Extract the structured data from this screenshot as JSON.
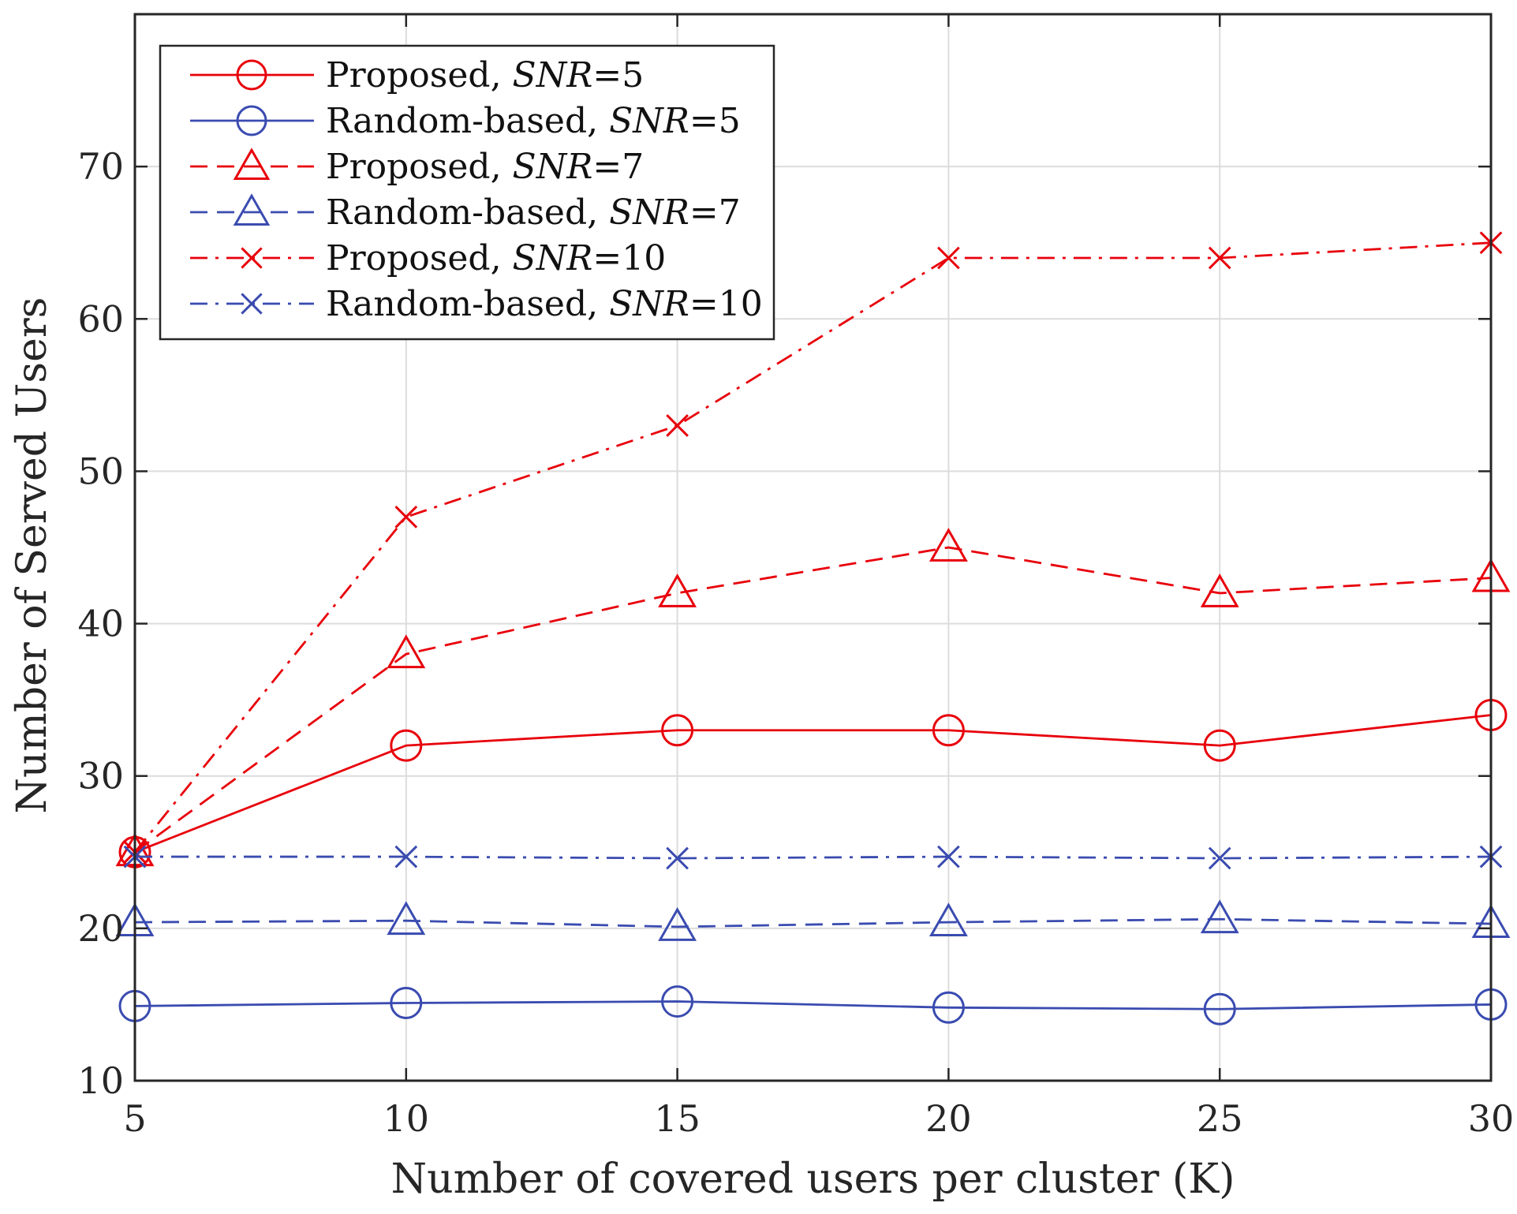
{
  "chart_data": {
    "type": "line",
    "title": "",
    "xlabel": "Number of covered users per cluster (K)",
    "ylabel": "Number of Served Users",
    "x": [
      5,
      10,
      15,
      20,
      25,
      30
    ],
    "xlim": [
      5,
      30
    ],
    "ylim": [
      10,
      80
    ],
    "xticks": [
      5,
      10,
      15,
      20,
      25,
      30
    ],
    "yticks": [
      10,
      20,
      30,
      40,
      50,
      60,
      70
    ],
    "grid": true,
    "legend_position": "top-left",
    "series": [
      {
        "name": "Proposed, SNR=5",
        "label_prefix": "Proposed, ",
        "label_var": "SNR",
        "label_value": "=5",
        "color": "#e8000b",
        "dash": "solid",
        "marker": "circle",
        "values": [
          25,
          32,
          33,
          33,
          32,
          34
        ]
      },
      {
        "name": "Random-based, SNR=5",
        "label_prefix": "Random-based, ",
        "label_var": "SNR",
        "label_value": "=5",
        "color": "#3a4bb0",
        "dash": "solid",
        "marker": "circle",
        "values": [
          14.9,
          15.1,
          15.2,
          14.8,
          14.7,
          15
        ]
      },
      {
        "name": "Proposed, SNR=7",
        "label_prefix": "Proposed, ",
        "label_var": "SNR",
        "label_value": "=7",
        "color": "#e8000b",
        "dash": "dashed",
        "marker": "triangle",
        "values": [
          25,
          38,
          42,
          45,
          42,
          43
        ]
      },
      {
        "name": "Random-based, SNR=7",
        "label_prefix": "Random-based, ",
        "label_var": "SNR",
        "label_value": "=7",
        "color": "#3a4bb0",
        "dash": "dashed",
        "marker": "triangle",
        "values": [
          20.4,
          20.5,
          20.1,
          20.4,
          20.6,
          20.3
        ]
      },
      {
        "name": "Proposed, SNR=10",
        "label_prefix": "Proposed, ",
        "label_var": "SNR",
        "label_value": "=10",
        "color": "#e8000b",
        "dash": "dashdot",
        "marker": "x",
        "values": [
          25,
          47,
          53,
          64,
          64,
          65
        ]
      },
      {
        "name": "Random-based, SNR=10",
        "label_prefix": "Random-based, ",
        "label_var": "SNR",
        "label_value": "=10",
        "color": "#3a4bb0",
        "dash": "dashdot",
        "marker": "x",
        "values": [
          24.7,
          24.7,
          24.6,
          24.7,
          24.6,
          24.7
        ]
      }
    ]
  }
}
